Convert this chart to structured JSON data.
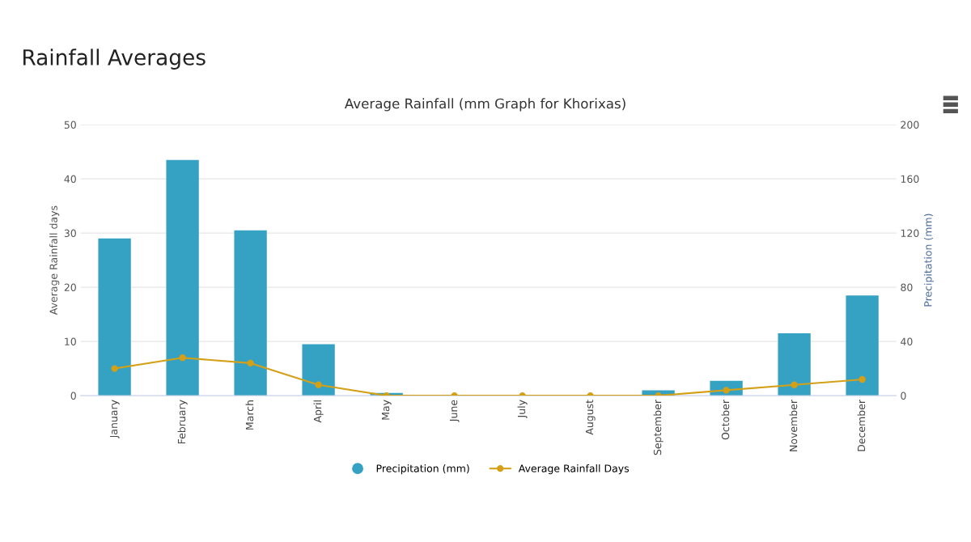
{
  "chart_data": {
    "type": "bar",
    "title": "Rainfall Averages",
    "subtitle": "Average Rainfall (mm Graph for Khorixas)",
    "ylabel": "Average Rainfall days",
    "y2label": "Precipitation (mm)",
    "categories": [
      "January",
      "February",
      "March",
      "April",
      "May",
      "June",
      "July",
      "August",
      "September",
      "October",
      "November",
      "December"
    ],
    "series": [
      {
        "name": "Precipitation (mm)",
        "axis": "y2",
        "color": "#36a2c3",
        "values": [
          116,
          174,
          122,
          38,
          2,
          0,
          0,
          0,
          4,
          11,
          46,
          74
        ]
      },
      {
        "name": "Average Rainfall Days",
        "type": "line",
        "axis": "y",
        "color": "#d4a017",
        "marker": "circle",
        "values": [
          5,
          7,
          6,
          2,
          0,
          0,
          0,
          0,
          0,
          1,
          2,
          3
        ]
      }
    ],
    "ylim": [
      0,
      50
    ],
    "yticks": [
      0,
      10,
      20,
      30,
      40,
      50
    ],
    "y2lim": [
      0,
      200
    ],
    "y2ticks": [
      0,
      40,
      80,
      120,
      160,
      200
    ],
    "grid": "y",
    "legend": "bottom"
  }
}
